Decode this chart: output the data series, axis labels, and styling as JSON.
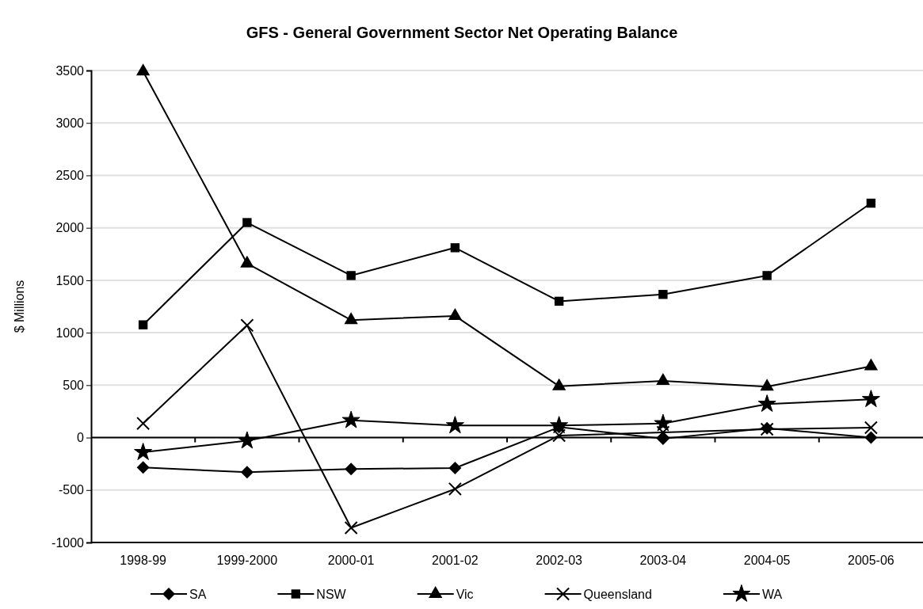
{
  "chart_data": {
    "type": "line",
    "title": "GFS - General Government Sector Net Operating Balance",
    "ylabel": "$ Millions",
    "categories": [
      "1998-99",
      "1999-2000",
      "2000-01",
      "2001-02",
      "2002-03",
      "2003-04",
      "2004-05",
      "2005-06"
    ],
    "ylim": [
      -1000,
      3500
    ],
    "yticks": [
      -1000,
      -500,
      0,
      500,
      1000,
      1500,
      2000,
      2500,
      3000,
      3500
    ],
    "grid": "y",
    "legend": "bottom",
    "series": [
      {
        "name": "SA",
        "color": "#000000",
        "marker": "diamond",
        "values": [
          -285,
          -330,
          -300,
          -290,
          100,
          -10,
          90,
          0
        ]
      },
      {
        "name": "NSW",
        "color": "#000000",
        "marker": "square",
        "values": [
          1075,
          2050,
          1545,
          1810,
          1300,
          1365,
          1545,
          2235
        ]
      },
      {
        "name": "Vic",
        "color": "#000000",
        "marker": "triangle",
        "values": [
          3490,
          1660,
          1120,
          1160,
          490,
          540,
          485,
          680
        ]
      },
      {
        "name": "Queensland",
        "color": "#000000",
        "marker": "cross",
        "values": [
          135,
          1070,
          -860,
          -490,
          20,
          50,
          80,
          95
        ]
      },
      {
        "name": "WA",
        "color": "#000000",
        "marker": "star",
        "values": [
          -140,
          -30,
          165,
          115,
          115,
          135,
          320,
          365
        ]
      }
    ]
  }
}
